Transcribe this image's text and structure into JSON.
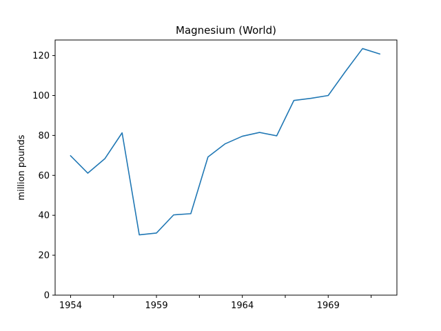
{
  "chart_data": {
    "type": "line",
    "title": "Magnesium (World)",
    "xlabel": "",
    "ylabel": "million pounds",
    "x": [
      1954,
      1955,
      1956,
      1957,
      1958,
      1959,
      1960,
      1961,
      1962,
      1963,
      1964,
      1965,
      1966,
      1967,
      1968,
      1969,
      1970,
      1971,
      1972
    ],
    "series": [
      {
        "values": [
          69.8,
          61.1,
          68.4,
          81.3,
          30.2,
          31.1,
          40.2,
          40.8,
          69.2,
          75.8,
          79.6,
          81.5,
          79.8,
          97.5,
          98.6,
          100.0,
          112.0,
          123.5,
          120.8
        ],
        "color": "#1f77b4"
      }
    ],
    "xlim": [
      1953.1,
      1973.0
    ],
    "ylim": [
      0,
      127.8
    ],
    "x_major_ticks": [
      1954,
      1959,
      1964,
      1969
    ],
    "x_minor_ticks": [
      1956.5,
      1961.5,
      1966.5,
      1971.5
    ],
    "y_ticks": [
      0,
      20,
      40,
      60,
      80,
      100,
      120
    ],
    "grid": false,
    "legend": "none"
  }
}
